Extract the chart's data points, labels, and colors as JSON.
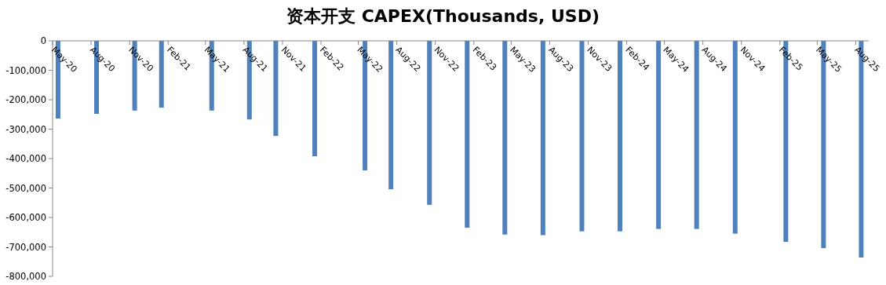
{
  "chart_data": {
    "type": "bar",
    "title": "资本开支 CAPEX(Thousands, USD)",
    "x": [
      "2020-05-14",
      "2020-08-14",
      "2020-11-13",
      "2021-01-16",
      "2021-05-16",
      "2021-08-14",
      "2021-10-16",
      "2022-01-17",
      "2022-05-17",
      "2022-07-18",
      "2022-10-18",
      "2023-01-16",
      "2023-04-16",
      "2023-07-16",
      "2023-10-17",
      "2024-01-16",
      "2024-04-17",
      "2024-07-17",
      "2024-10-17",
      "2025-02-15",
      "2025-05-16",
      "2025-08-14"
    ],
    "series": [
      {
        "color": "#4f81bd",
        "values": [
          -264000,
          -248000,
          -237000,
          -227000,
          -237000,
          -267000,
          -323000,
          -392000,
          -440000,
          -504000,
          -557000,
          -635000,
          -658000,
          -660000,
          -647000,
          -647000,
          -639000,
          -639000,
          -655000,
          -683000,
          -704000,
          -736000
        ]
      }
    ],
    "xlim": [
      "2020-05-01",
      "2025-09-01"
    ],
    "xticks": [
      {
        "value": "2020-05",
        "label": "May-20"
      },
      {
        "value": "2020-08",
        "label": "Aug-20"
      },
      {
        "value": "2020-11",
        "label": "Nov-20"
      },
      {
        "value": "2021-02",
        "label": "Feb-21"
      },
      {
        "value": "2021-05",
        "label": "May-21"
      },
      {
        "value": "2021-08",
        "label": "Aug-21"
      },
      {
        "value": "2021-11",
        "label": "Nov-21"
      },
      {
        "value": "2022-02",
        "label": "Feb-22"
      },
      {
        "value": "2022-05",
        "label": "May-22"
      },
      {
        "value": "2022-08",
        "label": "Aug-22"
      },
      {
        "value": "2022-11",
        "label": "Nov-22"
      },
      {
        "value": "2023-02",
        "label": "Feb-23"
      },
      {
        "value": "2023-05",
        "label": "May-23"
      },
      {
        "value": "2023-08",
        "label": "Aug-23"
      },
      {
        "value": "2023-11",
        "label": "Nov-23"
      },
      {
        "value": "2024-02",
        "label": "Feb-24"
      },
      {
        "value": "2024-05",
        "label": "May-24"
      },
      {
        "value": "2024-08",
        "label": "Aug-24"
      },
      {
        "value": "2024-11",
        "label": "Nov-24"
      },
      {
        "value": "2025-02",
        "label": "Feb-25"
      },
      {
        "value": "2025-05",
        "label": "May-25"
      },
      {
        "value": "2025-08",
        "label": "Aug-25"
      }
    ],
    "ylim": [
      -800000,
      0
    ],
    "yticks": [
      0,
      {
        "value": -100000,
        "label": "-100,000"
      },
      {
        "value": -200000,
        "label": "-200,000"
      },
      {
        "value": -300000,
        "label": "-300,000"
      },
      {
        "value": -400000,
        "label": "-400,000"
      },
      {
        "value": -500000,
        "label": "-500,000"
      },
      {
        "value": -600000,
        "label": "-600,000"
      },
      {
        "value": -700000,
        "label": "-700,000"
      },
      {
        "value": -800000,
        "label": "-800,000"
      }
    ],
    "grid": false
  }
}
